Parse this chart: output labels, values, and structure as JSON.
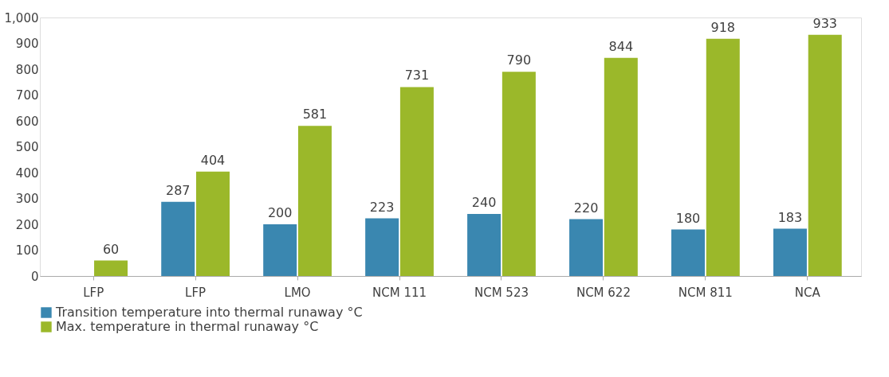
{
  "chart_data": {
    "type": "bar",
    "categories": [
      "LFP",
      "LFP",
      "LMO",
      "NCM 111",
      "NCM 523",
      "NCM 622",
      "NCM 811",
      "NCA"
    ],
    "series": [
      {
        "name": "Transition temperature into thermal runaway °C",
        "color": "#3a87b0",
        "values": [
          null,
          287,
          200,
          223,
          240,
          220,
          180,
          183
        ]
      },
      {
        "name": "Max. temperature in thermal runaway °C",
        "color": "#9bb82a",
        "values": [
          60,
          404,
          581,
          731,
          790,
          844,
          918,
          933
        ]
      }
    ],
    "ylim": [
      0,
      1000
    ],
    "yticks": [
      0,
      100,
      200,
      300,
      400,
      500,
      600,
      700,
      800,
      900,
      {
        "value": 1000,
        "label": "1,000"
      }
    ],
    "grid": false,
    "legend": "bottom",
    "data_labels": true
  }
}
